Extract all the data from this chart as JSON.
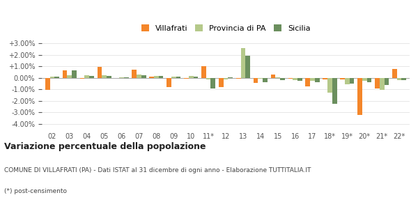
{
  "categories": [
    "02",
    "03",
    "04",
    "05",
    "06",
    "07",
    "08",
    "09",
    "10",
    "11*",
    "12",
    "13",
    "14",
    "15",
    "16",
    "17",
    "18*",
    "19*",
    "20*",
    "21*",
    "22*"
  ],
  "villafrati": [
    -0.0105,
    0.0065,
    -0.0005,
    0.0098,
    0.0,
    0.0072,
    0.0012,
    -0.008,
    -0.0008,
    0.0102,
    -0.008,
    -0.0008,
    -0.0045,
    0.003,
    -0.001,
    -0.0075,
    -0.0012,
    -0.0012,
    -0.032,
    -0.009,
    0.0078
  ],
  "provincia_pa": [
    0.0012,
    0.0025,
    0.002,
    0.0022,
    0.0005,
    0.0028,
    0.0018,
    0.0012,
    0.0018,
    -0.0015,
    -0.0012,
    0.026,
    -0.0008,
    0.0005,
    -0.0018,
    -0.0028,
    -0.013,
    -0.0058,
    -0.0028,
    -0.0105,
    -0.0018
  ],
  "sicilia": [
    0.001,
    0.0068,
    0.0018,
    0.0015,
    0.0005,
    0.002,
    0.0015,
    0.001,
    0.0012,
    -0.0095,
    0.0005,
    0.019,
    -0.004,
    -0.002,
    -0.0025,
    -0.0038,
    -0.0225,
    -0.005,
    -0.004,
    -0.006,
    -0.002
  ],
  "color_villafrati": "#f4862a",
  "color_provincia": "#b5c98a",
  "color_sicilia": "#6b8f5e",
  "title": "Variazione percentuale della popolazione",
  "ylim": [
    -0.045,
    0.035
  ],
  "background_color": "#ffffff",
  "grid_color": "#dddddd",
  "footnote1": "COMUNE DI VILLAFRATI (PA) - Dati ISTAT al 31 dicembre di ogni anno - Elaborazione TUTTITALIA.IT",
  "footnote2": "(*) post-censimento",
  "legend_labels": [
    "Villafrati",
    "Provincia di PA",
    "Sicilia"
  ]
}
